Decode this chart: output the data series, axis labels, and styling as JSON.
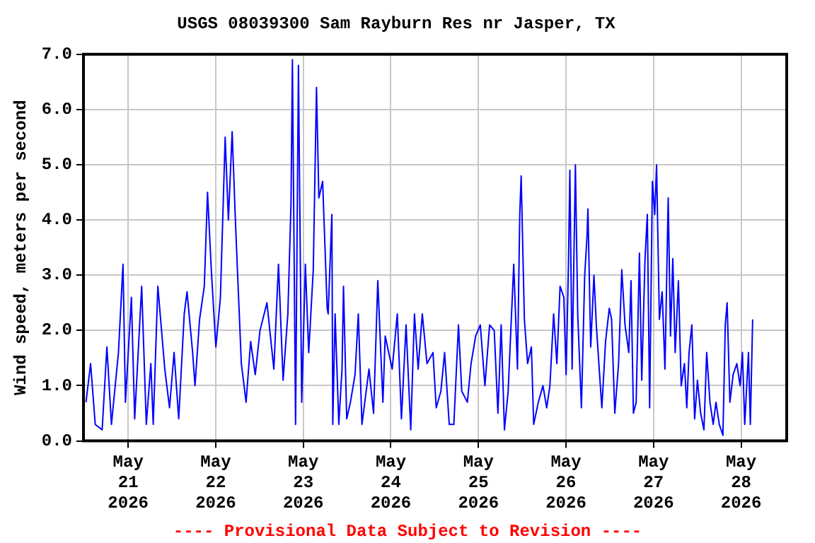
{
  "chart_data": {
    "type": "line",
    "title": "USGS 08039300 Sam Rayburn Res nr Jasper, TX",
    "ylabel": "Wind speed, meters per second",
    "annotations": [
      "---- Provisional Data Subject to Revision ----"
    ],
    "x": [
      "2026-05-20T12:26",
      "2026-05-20T13:42",
      "2026-05-20T14:58",
      "2026-05-20T16:52",
      "2026-05-20T18:10",
      "2026-05-20T19:25",
      "2026-05-20T21:20",
      "2026-05-20T22:35",
      "2026-05-20T23:15",
      "2026-05-21T00:53",
      "2026-05-21T01:47",
      "2026-05-21T03:42",
      "2026-05-21T04:58",
      "2026-05-21T06:13",
      "2026-05-21T06:52",
      "2026-05-21T08:08",
      "2026-05-21T10:02",
      "2026-05-21T11:20",
      "2026-05-21T12:35",
      "2026-05-21T13:51",
      "2026-05-21T15:22",
      "2026-05-21T16:08",
      "2026-05-21T17:40",
      "2026-05-21T18:19",
      "2026-05-21T19:34",
      "2026-05-21T20:52",
      "2026-05-21T21:45",
      "2026-05-21T22:47",
      "2026-05-22T00:02",
      "2026-05-22T01:17",
      "2026-05-22T02:35",
      "2026-05-22T03:28",
      "2026-05-22T04:30",
      "2026-05-22T05:23",
      "2026-05-22T06:08",
      "2026-05-22T07:01",
      "2026-05-22T08:19",
      "2026-05-22T09:34",
      "2026-05-22T10:50",
      "2026-05-22T12:08",
      "2026-05-22T14:02",
      "2026-05-22T15:56",
      "2026-05-22T17:12",
      "2026-05-22T18:28",
      "2026-05-22T19:46",
      "2026-05-22T20:38",
      "2026-05-22T21:01",
      "2026-05-22T21:53",
      "2026-05-22T22:40",
      "2026-05-22T23:34",
      "2026-05-23T00:34",
      "2026-05-23T01:29",
      "2026-05-23T02:44",
      "2026-05-23T03:37",
      "2026-05-23T04:16",
      "2026-05-23T05:18",
      "2026-05-23T06:33",
      "2026-05-23T06:49",
      "2026-05-23T07:50",
      "2026-05-23T08:05",
      "2026-05-23T08:43",
      "2026-05-23T09:44",
      "2026-05-23T10:37",
      "2026-05-23T11:01",
      "2026-05-23T11:54",
      "2026-05-23T12:55",
      "2026-05-23T14:11",
      "2026-05-23T15:05",
      "2026-05-23T16:05",
      "2026-05-23T18:00",
      "2026-05-23T19:16",
      "2026-05-23T20:25",
      "2026-05-23T21:49",
      "2026-05-23T22:27",
      "2026-05-24T00:22",
      "2026-05-24T01:46",
      "2026-05-24T02:54",
      "2026-05-24T04:10",
      "2026-05-24T05:27",
      "2026-05-24T06:28",
      "2026-05-24T07:29",
      "2026-05-24T08:37",
      "2026-05-24T09:54",
      "2026-05-24T11:33",
      "2026-05-24T12:26",
      "2026-05-24T13:43",
      "2026-05-24T14:44",
      "2026-05-24T16:00",
      "2026-05-24T17:16",
      "2026-05-24T18:32",
      "2026-05-24T19:26",
      "2026-05-24T20:58",
      "2026-05-24T21:59",
      "2026-05-24T23:15",
      "2026-05-25T00:31",
      "2026-05-25T01:47",
      "2026-05-25T03:04",
      "2026-05-25T04:20",
      "2026-05-25T05:21",
      "2026-05-25T06:14",
      "2026-05-25T07:08",
      "2026-05-25T08:09",
      "2026-05-25T09:41",
      "2026-05-25T10:42",
      "2026-05-25T11:20",
      "2026-05-25T11:43",
      "2026-05-25T12:36",
      "2026-05-25T13:29",
      "2026-05-25T14:31",
      "2026-05-25T15:09",
      "2026-05-25T16:25",
      "2026-05-25T17:41",
      "2026-05-25T18:43",
      "2026-05-25T19:36",
      "2026-05-25T20:37",
      "2026-05-25T21:30",
      "2026-05-25T22:23",
      "2026-05-25T23:25",
      "2026-05-26T00:02",
      "2026-05-26T00:41",
      "2026-05-26T01:04",
      "2026-05-26T01:41",
      "2026-05-26T02:35",
      "2026-05-26T03:13",
      "2026-05-26T04:14",
      "2026-05-26T05:08",
      "2026-05-26T05:46",
      "2026-05-26T06:01",
      "2026-05-26T06:47",
      "2026-05-26T07:40",
      "2026-05-26T08:19",
      "2026-05-26T09:19",
      "2026-05-26T09:50",
      "2026-05-26T10:51",
      "2026-05-26T11:52",
      "2026-05-26T12:30",
      "2026-05-26T13:23",
      "2026-05-26T14:25",
      "2026-05-26T15:18",
      "2026-05-26T16:11",
      "2026-05-26T17:13",
      "2026-05-26T17:50",
      "2026-05-26T18:29",
      "2026-05-26T19:14",
      "2026-05-26T20:08",
      "2026-05-26T20:46",
      "2026-05-26T21:40",
      "2026-05-26T22:18",
      "2026-05-26T22:56",
      "2026-05-26T23:41",
      "2026-05-27T00:20",
      "2026-05-27T00:50",
      "2026-05-27T01:36",
      "2026-05-27T02:22",
      "2026-05-27T03:08",
      "2026-05-27T04:01",
      "2026-05-27T04:39",
      "2026-05-27T05:17",
      "2026-05-27T05:56",
      "2026-05-27T06:49",
      "2026-05-27T07:35",
      "2026-05-27T08:28",
      "2026-05-27T09:07",
      "2026-05-27T09:44",
      "2026-05-27T10:30",
      "2026-05-27T11:16",
      "2026-05-27T12:02",
      "2026-05-27T12:55",
      "2026-05-27T13:49",
      "2026-05-27T14:34",
      "2026-05-27T15:28",
      "2026-05-27T16:21",
      "2026-05-27T17:07",
      "2026-05-27T18:01",
      "2026-05-27T19:01",
      "2026-05-27T19:40",
      "2026-05-27T20:10",
      "2026-05-27T20:56",
      "2026-05-27T21:49",
      "2026-05-27T22:50",
      "2026-05-27T23:44",
      "2026-05-28T00:22",
      "2026-05-28T01:00",
      "2026-05-28T02:01",
      "2026-05-28T02:32",
      "2026-05-28T03:10"
    ],
    "series": [
      {
        "color": "#0000ff",
        "values": [
          0.7,
          1.4,
          0.3,
          0.2,
          1.7,
          0.3,
          1.6,
          3.2,
          0.7,
          2.6,
          0.4,
          2.8,
          0.3,
          1.4,
          0.3,
          2.8,
          1.3,
          0.6,
          1.6,
          0.4,
          2.3,
          2.7,
          1.6,
          1.0,
          2.2,
          2.8,
          4.5,
          3.1,
          1.7,
          2.6,
          5.5,
          4.0,
          5.6,
          4.0,
          2.8,
          1.4,
          0.7,
          1.8,
          1.2,
          2.0,
          2.5,
          1.3,
          3.2,
          1.1,
          2.3,
          4.3,
          6.9,
          0.3,
          6.8,
          0.7,
          3.2,
          1.6,
          3.1,
          6.4,
          4.4,
          4.7,
          2.4,
          2.3,
          4.1,
          0.3,
          2.3,
          0.3,
          1.3,
          2.8,
          0.4,
          0.7,
          1.2,
          2.3,
          0.3,
          1.3,
          0.5,
          2.9,
          0.7,
          1.9,
          1.3,
          2.3,
          0.4,
          2.1,
          0.2,
          2.3,
          1.3,
          2.3,
          1.4,
          1.6,
          0.6,
          0.9,
          1.6,
          0.3,
          0.3,
          2.1,
          0.9,
          0.7,
          1.4,
          1.9,
          2.1,
          1.0,
          2.1,
          2.0,
          0.5,
          2.1,
          0.2,
          0.9,
          3.2,
          1.3,
          4.1,
          4.8,
          2.2,
          1.4,
          1.7,
          0.3,
          0.7,
          1.0,
          0.6,
          1.0,
          2.3,
          1.4,
          2.8,
          2.6,
          1.2,
          3.2,
          4.9,
          1.3,
          5.0,
          2.3,
          0.6,
          3.0,
          3.7,
          4.2,
          1.7,
          3.0,
          2.1,
          1.1,
          0.6,
          1.8,
          2.4,
          2.2,
          0.5,
          1.4,
          3.1,
          2.1,
          1.6,
          2.9,
          0.5,
          0.7,
          3.4,
          1.1,
          3.3,
          4.1,
          0.6,
          4.7,
          4.1,
          5.0,
          2.2,
          2.7,
          1.3,
          4.4,
          1.9,
          3.3,
          1.6,
          2.9,
          1.0,
          1.4,
          0.6,
          1.6,
          2.1,
          0.4,
          1.1,
          0.5,
          0.2,
          1.6,
          0.7,
          0.3,
          0.7,
          0.3,
          0.1,
          2.1,
          2.5,
          0.7,
          1.2,
          1.4,
          1.0,
          1.6,
          0.3,
          1.6,
          0.3,
          2.2
        ]
      }
    ],
    "xlim": [
      "2026-05-20T11:45",
      "2026-05-28T12:30"
    ],
    "xticks": [
      {
        "value": "2026-05-21",
        "label": "May 21 2026"
      },
      {
        "value": "2026-05-22",
        "label": "May 22 2026"
      },
      {
        "value": "2026-05-23",
        "label": "May 23 2026"
      },
      {
        "value": "2026-05-24",
        "label": "May 24 2026"
      },
      {
        "value": "2026-05-25",
        "label": "May 25 2026"
      },
      {
        "value": "2026-05-26",
        "label": "May 26 2026"
      },
      {
        "value": "2026-05-27",
        "label": "May 27 2026"
      },
      {
        "value": "2026-05-28",
        "label": "May 28 2026"
      }
    ],
    "ylim": [
      0,
      7
    ],
    "yticks": [
      {
        "value": 0,
        "label": "0.0"
      },
      {
        "value": 1,
        "label": "1.0"
      },
      {
        "value": 2,
        "label": "2.0"
      },
      {
        "value": 3,
        "label": "3.0"
      },
      {
        "value": 4,
        "label": "4.0"
      },
      {
        "value": 5,
        "label": "5.0"
      },
      {
        "value": 6,
        "label": "6.0"
      },
      {
        "value": 7,
        "label": "7.0"
      }
    ],
    "grid": true,
    "legend": false,
    "marker": "none",
    "line_style": "solid"
  }
}
